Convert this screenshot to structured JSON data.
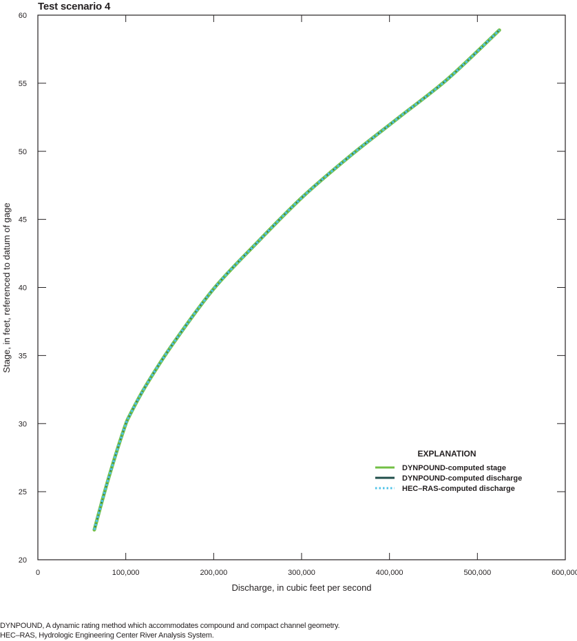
{
  "title": "Test scenario 4",
  "footnotes": [
    "DYNPOUND, A dynamic rating method which accommodates compound and compact channel geometry.",
    "HEC–RAS, Hydrologic Engineering Center River Analysis System."
  ],
  "colors": {
    "dynpound_stage": "#72bf44",
    "dynpound_discharge": "#1f4e4a",
    "hecras_discharge": "#4fc3e8",
    "axis": "#231f20"
  },
  "chart_data": {
    "type": "line",
    "title": "Test scenario 4",
    "xlabel": "Discharge, in cubic feet per second",
    "ylabel": "Stage, in feet, referenced to datum of gage",
    "xlim": [
      0,
      600000
    ],
    "ylim": [
      20,
      60
    ],
    "xticks": [
      0,
      100000,
      200000,
      300000,
      400000,
      500000,
      600000
    ],
    "xtick_labels": [
      "0",
      "100,000",
      "200,000",
      "300,000",
      "400,000",
      "500,000",
      "600,000"
    ],
    "yticks": [
      20,
      25,
      30,
      35,
      40,
      45,
      50,
      55,
      60
    ],
    "ytick_labels": [
      "20",
      "25",
      "30",
      "35",
      "40",
      "45",
      "50",
      "55",
      "60"
    ],
    "grid": false,
    "legend_title": "EXPLANATION",
    "legend_position": "lower right",
    "series": [
      {
        "name": "DYNPOUND-computed stage",
        "style": "solid",
        "color": "#72bf44",
        "x": [
          64200,
          80000,
          98000,
          106000,
          123000,
          153000,
          200000,
          251000,
          302000,
          356000,
          411000,
          466000,
          525000
        ],
        "y": [
          22.2,
          25.9,
          29.6,
          30.8,
          32.8,
          35.8,
          39.9,
          43.4,
          46.7,
          49.7,
          52.5,
          55.3,
          58.9
        ]
      },
      {
        "name": "DYNPOUND-computed discharge",
        "style": "solid",
        "color": "#1f4e4a",
        "x": [
          64200,
          80000,
          98000,
          106000,
          123000,
          153000,
          200000,
          251000,
          302000,
          356000,
          411000,
          466000,
          525000
        ],
        "y": [
          22.2,
          25.9,
          29.6,
          30.8,
          32.8,
          35.8,
          39.9,
          43.4,
          46.7,
          49.7,
          52.5,
          55.3,
          58.9
        ]
      },
      {
        "name": "HEC–RAS-computed discharge",
        "style": "dotted",
        "color": "#4fc3e8",
        "x": [
          64200,
          80000,
          98000,
          106000,
          123000,
          153000,
          200000,
          251000,
          302000,
          356000,
          411000,
          466000,
          525000
        ],
        "y": [
          22.2,
          25.9,
          29.6,
          30.8,
          32.8,
          35.8,
          39.9,
          43.4,
          46.7,
          49.7,
          52.5,
          55.3,
          58.9
        ]
      }
    ]
  }
}
